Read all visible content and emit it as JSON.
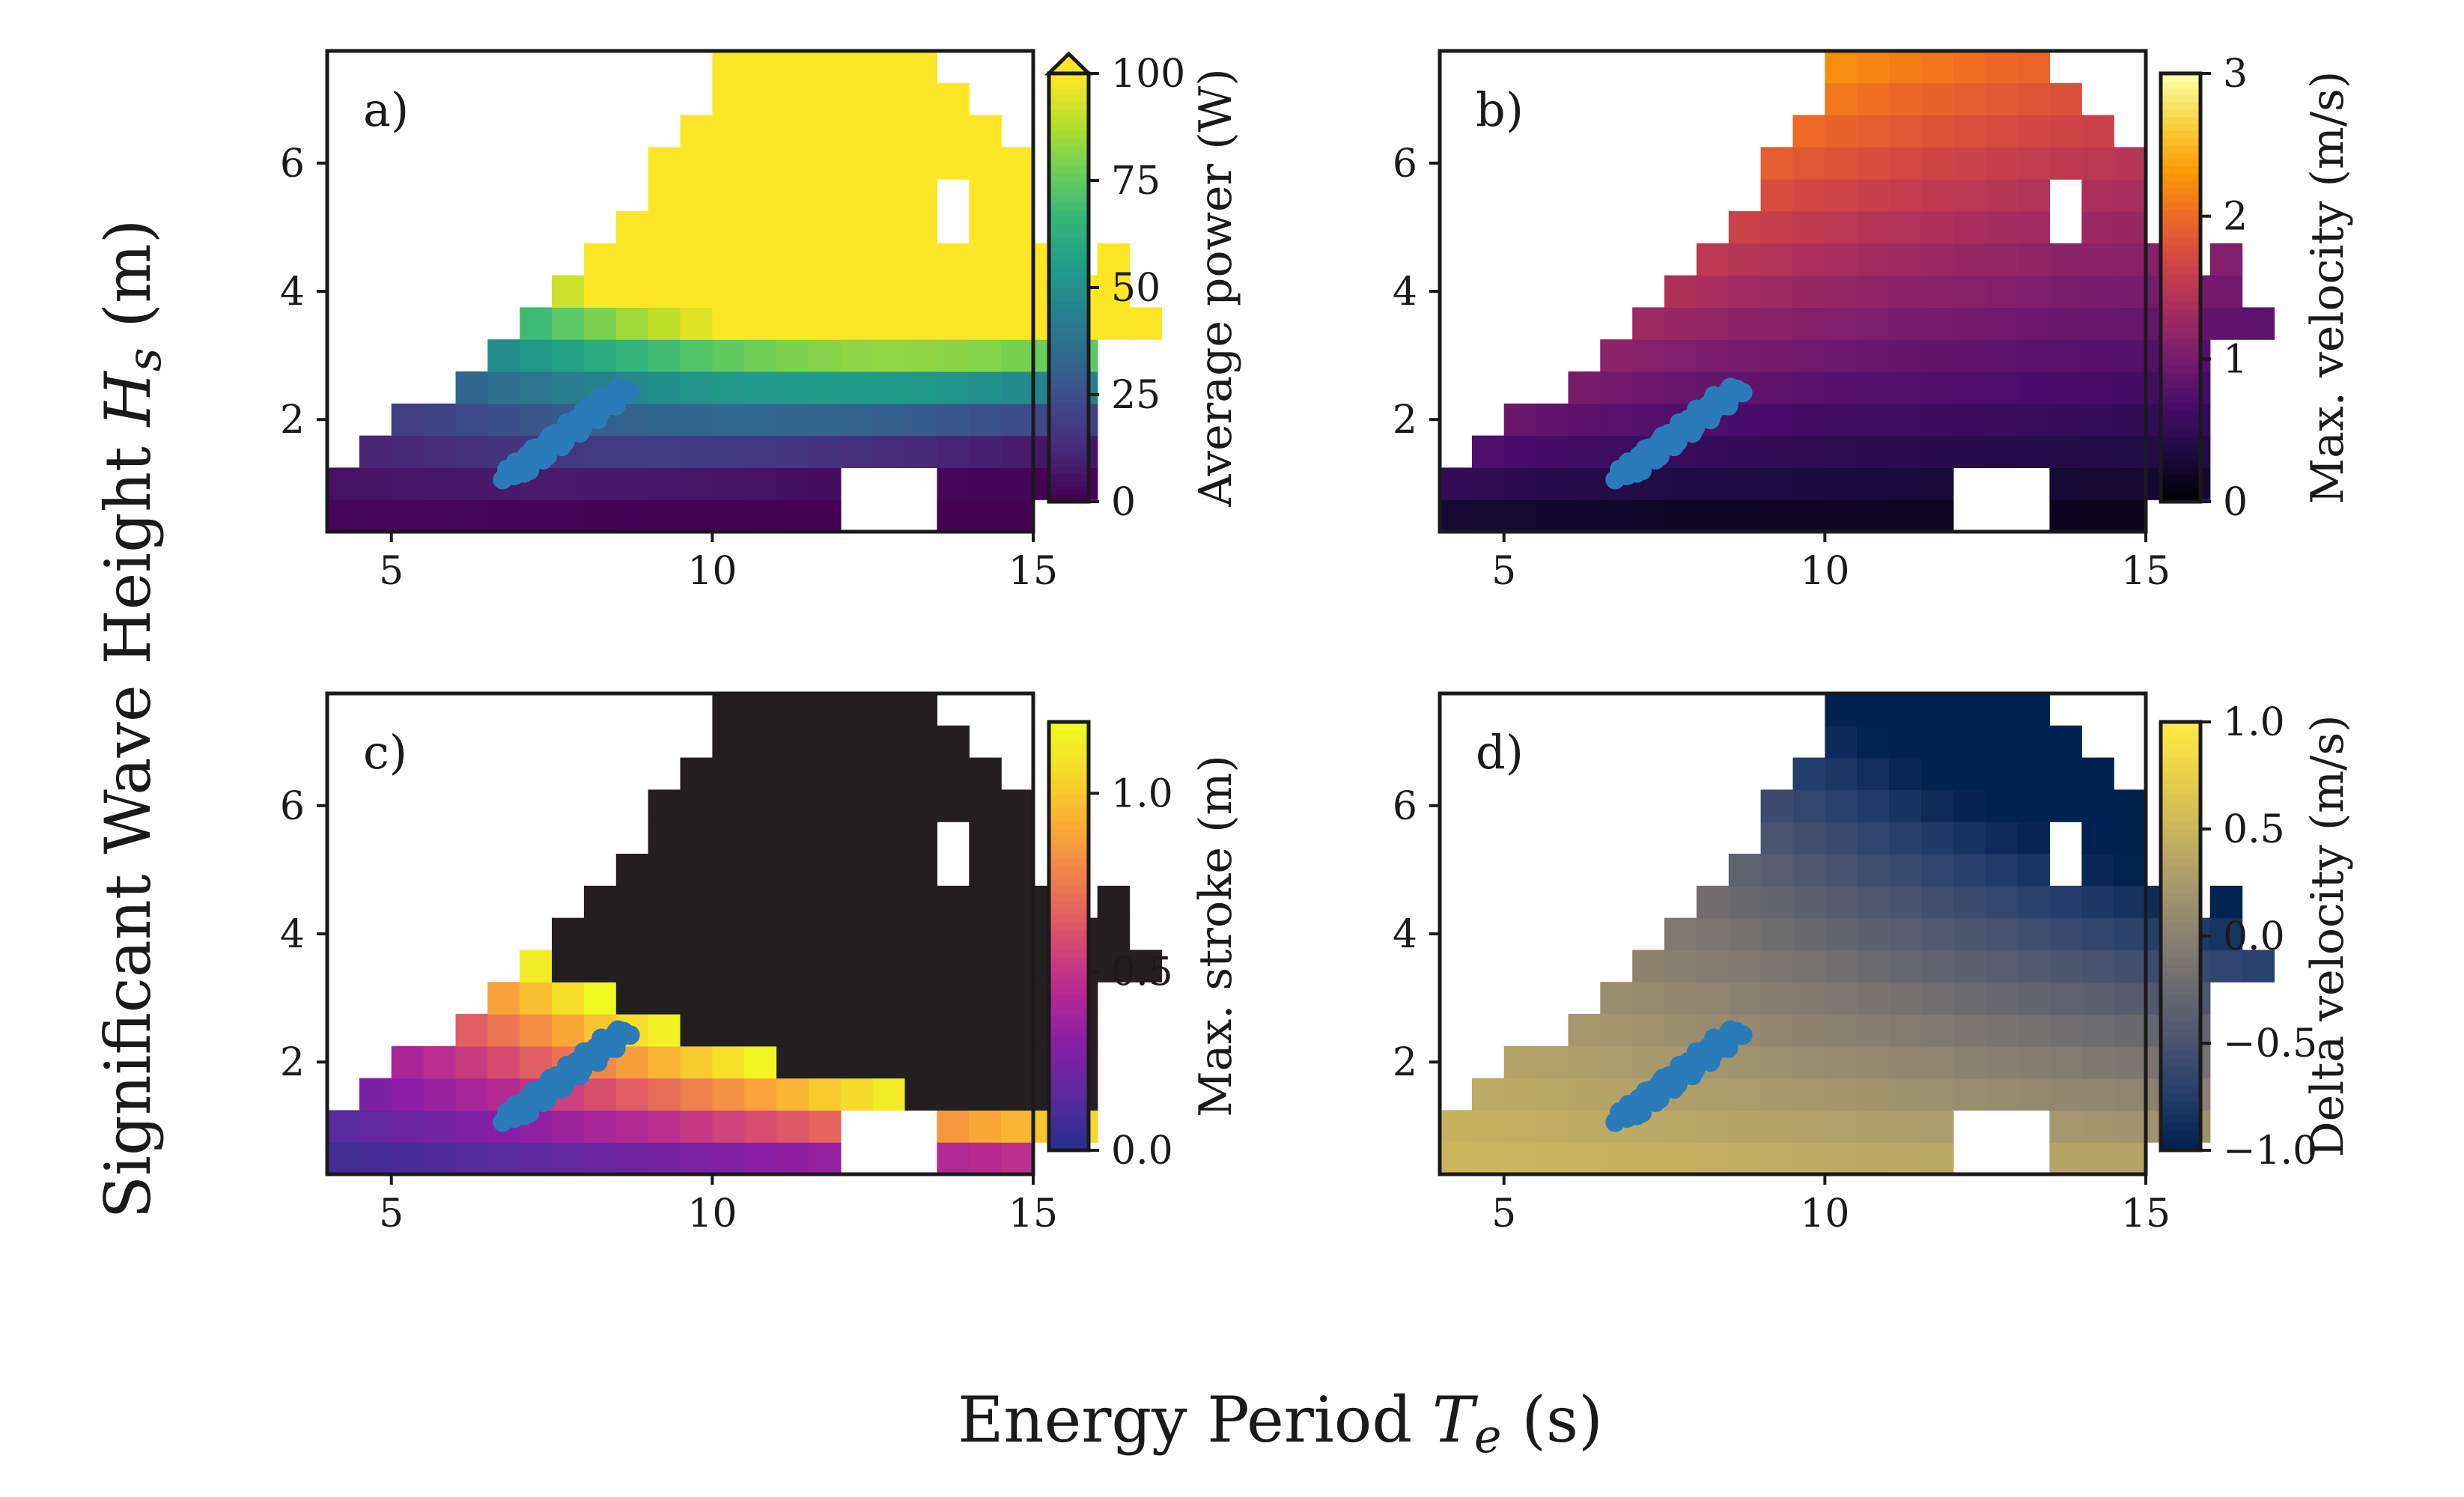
{
  "figure": {
    "xlabel": "Energy Period T_e (s)",
    "ylabel": "Significant Wave Height H_s (m)"
  },
  "chart_data": [
    {
      "type": "heatmap",
      "panel": "a)",
      "xlim": [
        4,
        15
      ],
      "ylim": [
        0.25,
        7.75
      ],
      "xticks": [
        "5",
        "10",
        "15"
      ],
      "yticks": [
        "2",
        "4",
        "6"
      ],
      "colormap": "viridis",
      "colorbar": {
        "label": "Average power (W)",
        "ticks": [
          "0",
          "25",
          "50",
          "75",
          "100"
        ],
        "range": [
          0,
          100
        ],
        "extend": "max"
      },
      "cell_size": {
        "dTe": 0.5,
        "dHs": 0.5
      },
      "value_rule": "power ~ 7.5 * Hs^2 * (Te/8)^0.5 * exp(-1.5 * (Te/(6.5*Hs^0.5) - 1)^2)",
      "overlay_points": "wave climate observations, Te 6.8 to 8.6 s, Hs 1.1 to 2.5 m, color #2b7bb9"
    },
    {
      "type": "heatmap",
      "panel": "b)",
      "xlim": [
        4,
        15
      ],
      "ylim": [
        0.25,
        7.75
      ],
      "xticks": [
        "5",
        "10",
        "15"
      ],
      "yticks": [
        "2",
        "4",
        "6"
      ],
      "colormap": "inferno",
      "colorbar": {
        "label": "Max. velocity (m/s)",
        "ticks": [
          "0",
          "1",
          "2",
          "3"
        ],
        "range": [
          0,
          3
        ]
      },
      "value_rule": "max velocity grows with Hs and falls with Te; about 0.1 m/s at Hs 0.5 m and about 2.7 m/s at Hs 7.5 m, Te 8.5 s",
      "overlay_points": "same observations"
    },
    {
      "type": "heatmap",
      "panel": "c)",
      "xlim": [
        4,
        15
      ],
      "ylim": [
        0.25,
        7.75
      ],
      "xticks": [
        "5",
        "10",
        "15"
      ],
      "yticks": [
        "2",
        "4",
        "6"
      ],
      "colormap": "plasma",
      "colorbar": {
        "label": "Max. stroke (m)",
        "ticks": [
          "0.0",
          "0.5",
          "1.0"
        ],
        "range": [
          0,
          1.2
        ]
      },
      "saturated_color": "#231f20",
      "value_rule": "stroke ~ 0.38 * Hs * (Te/8)^1.5, cells above 1.2 m drawn dark",
      "overlay_points": "same observations"
    },
    {
      "type": "heatmap",
      "panel": "d)",
      "xlim": [
        4,
        15
      ],
      "ylim": [
        0.25,
        7.75
      ],
      "xticks": [
        "5",
        "10",
        "15"
      ],
      "yticks": [
        "2",
        "4",
        "6"
      ],
      "colormap": "cividis",
      "colorbar": {
        "label": "Delta velocity (m/s)",
        "ticks": [
          "1.0",
          "0.5",
          "0.0",
          "−0.5",
          "−1.0"
        ],
        "range": [
          -1,
          1
        ]
      },
      "value_rule": "delta velocity between about +0.5 at Te 4.5 s, Hs 1.5 m and about -0.8 at Te 10 s, Hs 7.5 m",
      "overlay_points": "same observations"
    }
  ],
  "colors": {
    "viridis": [
      "#440154",
      "#482878",
      "#3e4989",
      "#31688e",
      "#26828e",
      "#1f9e89",
      "#35b779",
      "#6ece58",
      "#b5de2b",
      "#fde725"
    ],
    "inferno": [
      "#000004",
      "#1b0c41",
      "#4a0c6b",
      "#781c6d",
      "#a52c60",
      "#cf4446",
      "#ed6925",
      "#fb9b06",
      "#f7d13d",
      "#fcffa4"
    ],
    "plasma": [
      "#2a2f8f",
      "#5a2a9c",
      "#8a1ea5",
      "#b82a92",
      "#d84f6e",
      "#ee7a4e",
      "#f9a636",
      "#f8d52c",
      "#f0f921"
    ],
    "cividis": [
      "#00224e",
      "#233e6c",
      "#4a546f",
      "#6a6a6e",
      "#8a8070",
      "#a89a6c",
      "#c8b45e",
      "#e8cf49",
      "#fdea45"
    ],
    "saturated": "#231f20",
    "points": "#2b7bb9"
  }
}
